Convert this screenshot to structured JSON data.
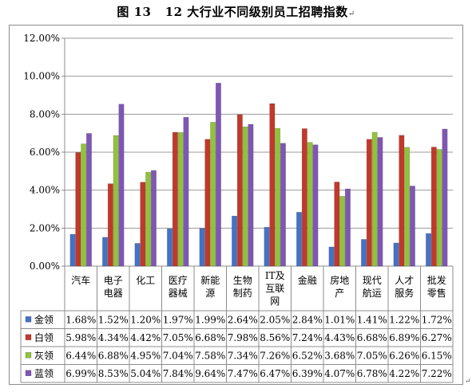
{
  "caption": {
    "figure_label": "图 13",
    "title": "12 大行业不同级别员工招聘指数",
    "mark": "↵"
  },
  "end_mark": "↵",
  "chart_data": {
    "type": "bar",
    "title": "",
    "xlabel": "",
    "ylabel": "",
    "ylim": [
      0,
      12
    ],
    "y_unit": "%",
    "y_ticks": [
      "0.00%",
      "2.00%",
      "4.00%",
      "6.00%",
      "8.00%",
      "10.00%",
      "12.00%"
    ],
    "grid": "horizontal",
    "legend_placement": "data-table-left",
    "categories": [
      [
        "汽车"
      ],
      [
        "电子",
        "电器"
      ],
      [
        "化工"
      ],
      [
        "医疗",
        "器械"
      ],
      [
        "新能",
        "源"
      ],
      [
        "生物",
        "制药"
      ],
      [
        "IT及",
        "互联",
        "网"
      ],
      [
        "金融"
      ],
      [
        "房地",
        "产"
      ],
      [
        "现代",
        "航运"
      ],
      [
        "人才",
        "服务"
      ],
      [
        "批发",
        "零售"
      ]
    ],
    "series": [
      {
        "name": "金领",
        "color": "#4472c4",
        "values": [
          1.68,
          1.52,
          1.2,
          1.97,
          1.99,
          2.64,
          2.05,
          2.84,
          1.01,
          1.41,
          1.22,
          1.72
        ],
        "labels": [
          "1.68%",
          "1.52%",
          "1.20%",
          "1.97%",
          "1.99%",
          "2.64%",
          "2.05%",
          "2.84%",
          "1.01%",
          "1.41%",
          "1.22%",
          "1.72%"
        ]
      },
      {
        "name": "白领",
        "color": "#c0392b",
        "values": [
          5.98,
          4.34,
          4.42,
          7.05,
          6.68,
          7.98,
          8.56,
          7.24,
          4.43,
          6.68,
          6.89,
          6.27
        ],
        "labels": [
          "5.98%",
          "4.34%",
          "4.42%",
          "7.05%",
          "6.68%",
          "7.98%",
          "8.56%",
          "7.24%",
          "4.43%",
          "6.68%",
          "6.89%",
          "6.27%"
        ]
      },
      {
        "name": "灰领",
        "color": "#92c13c",
        "values": [
          6.44,
          6.88,
          4.95,
          7.04,
          7.58,
          7.34,
          7.26,
          6.52,
          3.68,
          7.05,
          6.26,
          6.15
        ],
        "labels": [
          "6.44%",
          "6.88%",
          "4.95%",
          "7.04%",
          "7.58%",
          "7.34%",
          "7.26%",
          "6.52%",
          "3.68%",
          "7.05%",
          "6.26%",
          "6.15%"
        ]
      },
      {
        "name": "蓝领",
        "color": "#7e57b4",
        "values": [
          6.99,
          8.53,
          5.04,
          7.84,
          9.64,
          7.47,
          6.47,
          6.39,
          4.07,
          6.78,
          4.22,
          7.22
        ],
        "labels": [
          "6.99%",
          "8.53%",
          "5.04%",
          "7.84%",
          "9.64%",
          "7.47%",
          "6.47%",
          "6.39%",
          "4.07%",
          "6.78%",
          "4.22%",
          "7.22%"
        ]
      }
    ]
  }
}
